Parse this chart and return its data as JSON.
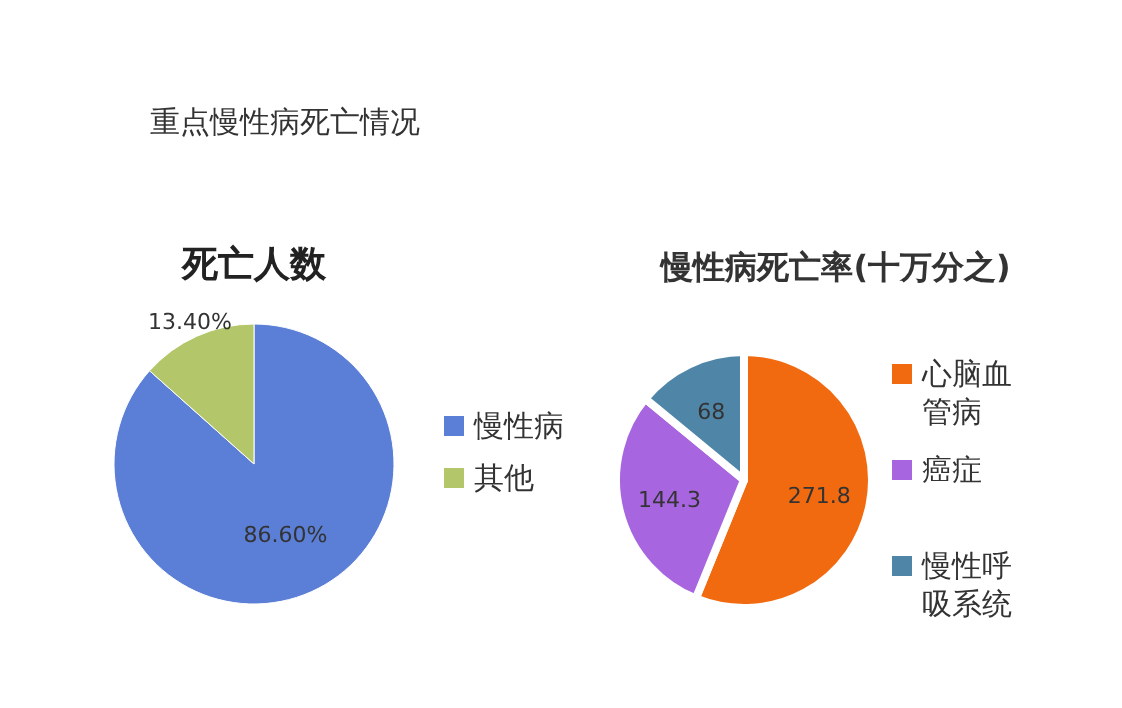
{
  "chart_data": [
    {
      "type": "pie",
      "title": "重点慢性病死亡情况",
      "subtitle": "死亡人数",
      "categories": [
        "慢性病",
        "其他"
      ],
      "values": [
        86.6,
        13.4
      ],
      "colors": [
        "#5b7fd6",
        "#b3c66a"
      ],
      "value_labels": [
        "86.60%",
        "13.40%"
      ],
      "legend": "right"
    },
    {
      "type": "pie",
      "title": "慢性病死亡率(十万分之)",
      "categories": [
        "心脑血管病",
        "癌症",
        "慢性呼吸系统"
      ],
      "values": [
        271.8,
        144.3,
        68
      ],
      "colors": [
        "#f26a10",
        "#a865e0",
        "#4f86a8"
      ],
      "data_labels": true,
      "legend": "right"
    }
  ]
}
